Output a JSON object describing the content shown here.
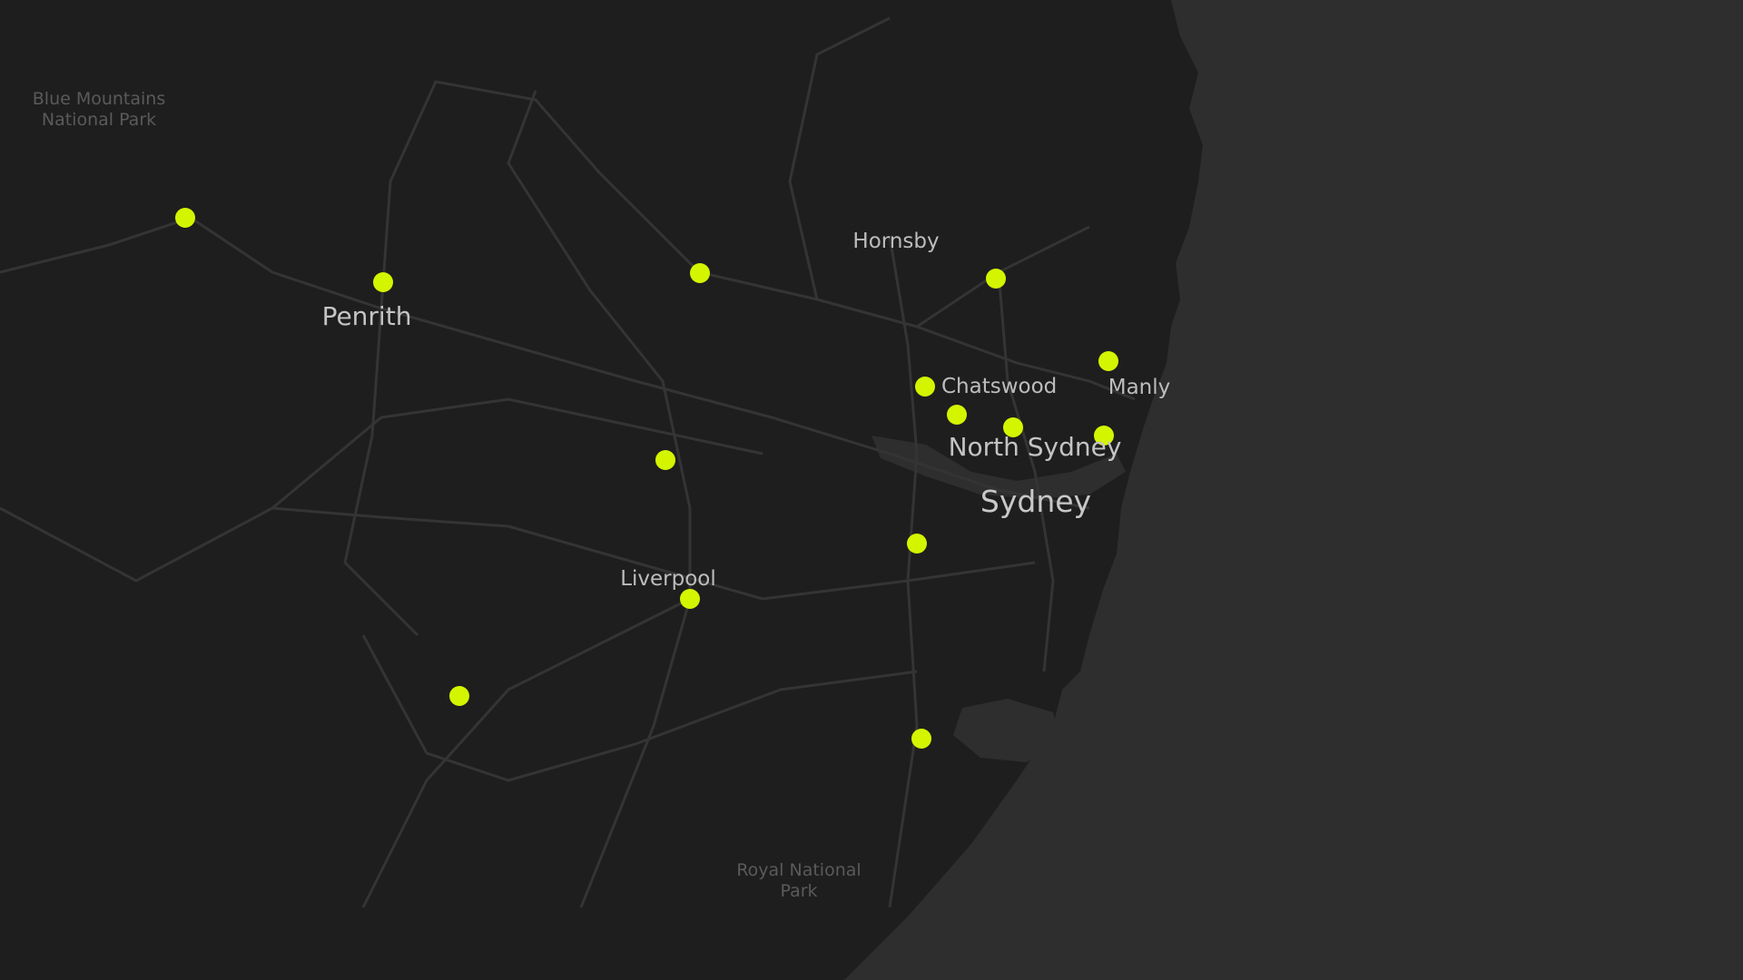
{
  "map": {
    "colors": {
      "land": "#1e1e1e",
      "water": "#2e2e2e",
      "roads": "#363636",
      "marker": "#d4f500"
    },
    "labels": {
      "blue_mountains": "Blue Mountains\nNational Park",
      "hornsby": "Hornsby",
      "penrith": "Penrith",
      "chatswood": "Chatswood",
      "manly": "Manly",
      "north_sydney": "North Sydney",
      "sydney": "Sydney",
      "liverpool": "Liverpool",
      "royal_national_park": "Royal National\nPark"
    },
    "marker_count": 14
  }
}
